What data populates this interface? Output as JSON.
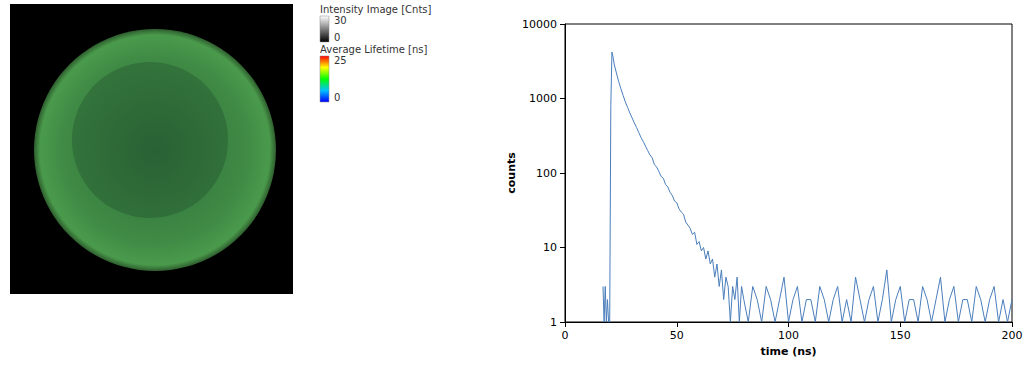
{
  "image_panel": {
    "legends": [
      {
        "title": "Intensity Image [Cnts]",
        "range": [
          0,
          30
        ]
      },
      {
        "title": "Average Lifetime [ns]",
        "range": [
          0,
          25
        ]
      }
    ]
  },
  "chart_data": {
    "type": "line",
    "log": "y",
    "grid": false,
    "color": "#4a7ebb",
    "x_label": "time (ns)",
    "y_label": "counts",
    "xlim": [
      0,
      200
    ],
    "xticks": [
      0,
      50,
      100,
      150,
      200
    ],
    "ylim": [
      1,
      10000
    ],
    "yticks": [
      1,
      10,
      100,
      1000,
      10000
    ],
    "x": [
      17,
      17.5,
      18,
      18.5,
      19,
      19.5,
      20,
      20.5,
      21,
      21.5,
      22,
      23,
      24,
      25,
      26,
      27,
      28,
      29,
      30,
      31,
      32,
      33,
      34,
      35,
      36,
      37,
      38,
      39,
      40,
      41,
      42,
      43,
      44,
      45,
      46,
      47,
      48,
      49,
      50,
      51,
      52,
      53,
      54,
      55,
      56,
      57,
      58,
      59,
      60,
      61,
      62,
      63,
      64,
      65,
      66,
      67,
      68,
      69,
      70,
      71,
      72,
      73,
      74,
      75,
      76,
      77,
      78,
      79,
      80,
      82,
      84,
      86,
      88,
      90,
      92,
      94,
      96,
      98,
      100,
      102,
      104,
      106,
      108,
      110,
      112,
      114,
      116,
      118,
      120,
      122,
      124,
      126,
      128,
      130,
      132,
      134,
      136,
      138,
      140,
      142,
      144,
      146,
      148,
      150,
      152,
      154,
      156,
      158,
      160,
      162,
      164,
      166,
      168,
      170,
      172,
      174,
      176,
      178,
      180,
      182,
      184,
      186,
      188,
      190,
      192,
      194,
      196,
      198,
      200
    ],
    "values": [
      3,
      1,
      3,
      1,
      2,
      1,
      1,
      800,
      4200,
      3600,
      2900,
      2200,
      1700,
      1350,
      1100,
      900,
      760,
      640,
      550,
      470,
      410,
      350,
      300,
      265,
      230,
      200,
      175,
      160,
      130,
      120,
      105,
      90,
      85,
      70,
      65,
      55,
      50,
      42,
      40,
      33,
      30,
      28,
      22,
      20,
      18,
      15,
      16,
      11,
      12,
      9,
      10,
      7,
      9,
      6,
      7,
      4,
      6,
      3,
      5,
      2,
      4,
      3,
      1,
      3,
      2,
      4,
      1,
      3,
      2,
      1,
      3,
      2,
      1,
      3,
      2,
      1,
      2,
      4,
      1,
      2,
      3,
      1,
      2,
      2,
      1,
      3,
      2,
      1,
      2,
      3,
      1,
      2,
      1,
      4,
      2,
      1,
      2,
      3,
      1,
      2,
      5,
      1,
      2,
      3,
      1,
      2,
      2,
      1,
      3,
      2,
      1,
      2,
      4,
      1,
      2,
      3,
      1,
      2,
      2,
      1,
      3,
      2,
      1,
      2,
      3,
      1,
      2,
      1,
      2
    ]
  }
}
